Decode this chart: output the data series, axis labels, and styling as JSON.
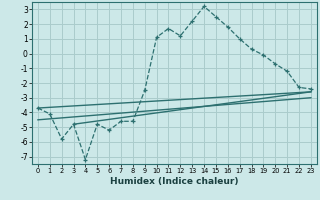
{
  "xlabel": "Humidex (Indice chaleur)",
  "bg_color": "#cce8e8",
  "grid_color": "#aacccc",
  "line_color": "#2d7070",
  "xlim": [
    -0.5,
    23.5
  ],
  "ylim": [
    -7.5,
    3.5
  ],
  "xticks": [
    0,
    1,
    2,
    3,
    4,
    5,
    6,
    7,
    8,
    9,
    10,
    11,
    12,
    13,
    14,
    15,
    16,
    17,
    18,
    19,
    20,
    21,
    22,
    23
  ],
  "yticks": [
    -7,
    -6,
    -5,
    -4,
    -3,
    -2,
    -1,
    0,
    1,
    2,
    3
  ],
  "main_x": [
    0,
    1,
    2,
    3,
    4,
    5,
    6,
    7,
    8,
    9,
    10,
    11,
    12,
    13,
    14,
    15,
    16,
    17,
    18,
    19,
    20,
    21,
    22,
    23
  ],
  "main_y": [
    -3.7,
    -4.1,
    -5.8,
    -4.8,
    -7.2,
    -4.8,
    -5.2,
    -4.6,
    -4.6,
    -2.5,
    1.1,
    1.7,
    1.2,
    2.2,
    3.2,
    2.5,
    1.8,
    1.0,
    0.3,
    -0.1,
    -0.7,
    -1.2,
    -2.3,
    -2.4
  ],
  "line1_x": [
    0,
    23
  ],
  "line1_y": [
    -3.7,
    -2.6
  ],
  "line2_x": [
    0,
    23
  ],
  "line2_y": [
    -4.5,
    -3.0
  ],
  "line3_x": [
    3,
    23
  ],
  "line3_y": [
    -4.8,
    -2.6
  ]
}
